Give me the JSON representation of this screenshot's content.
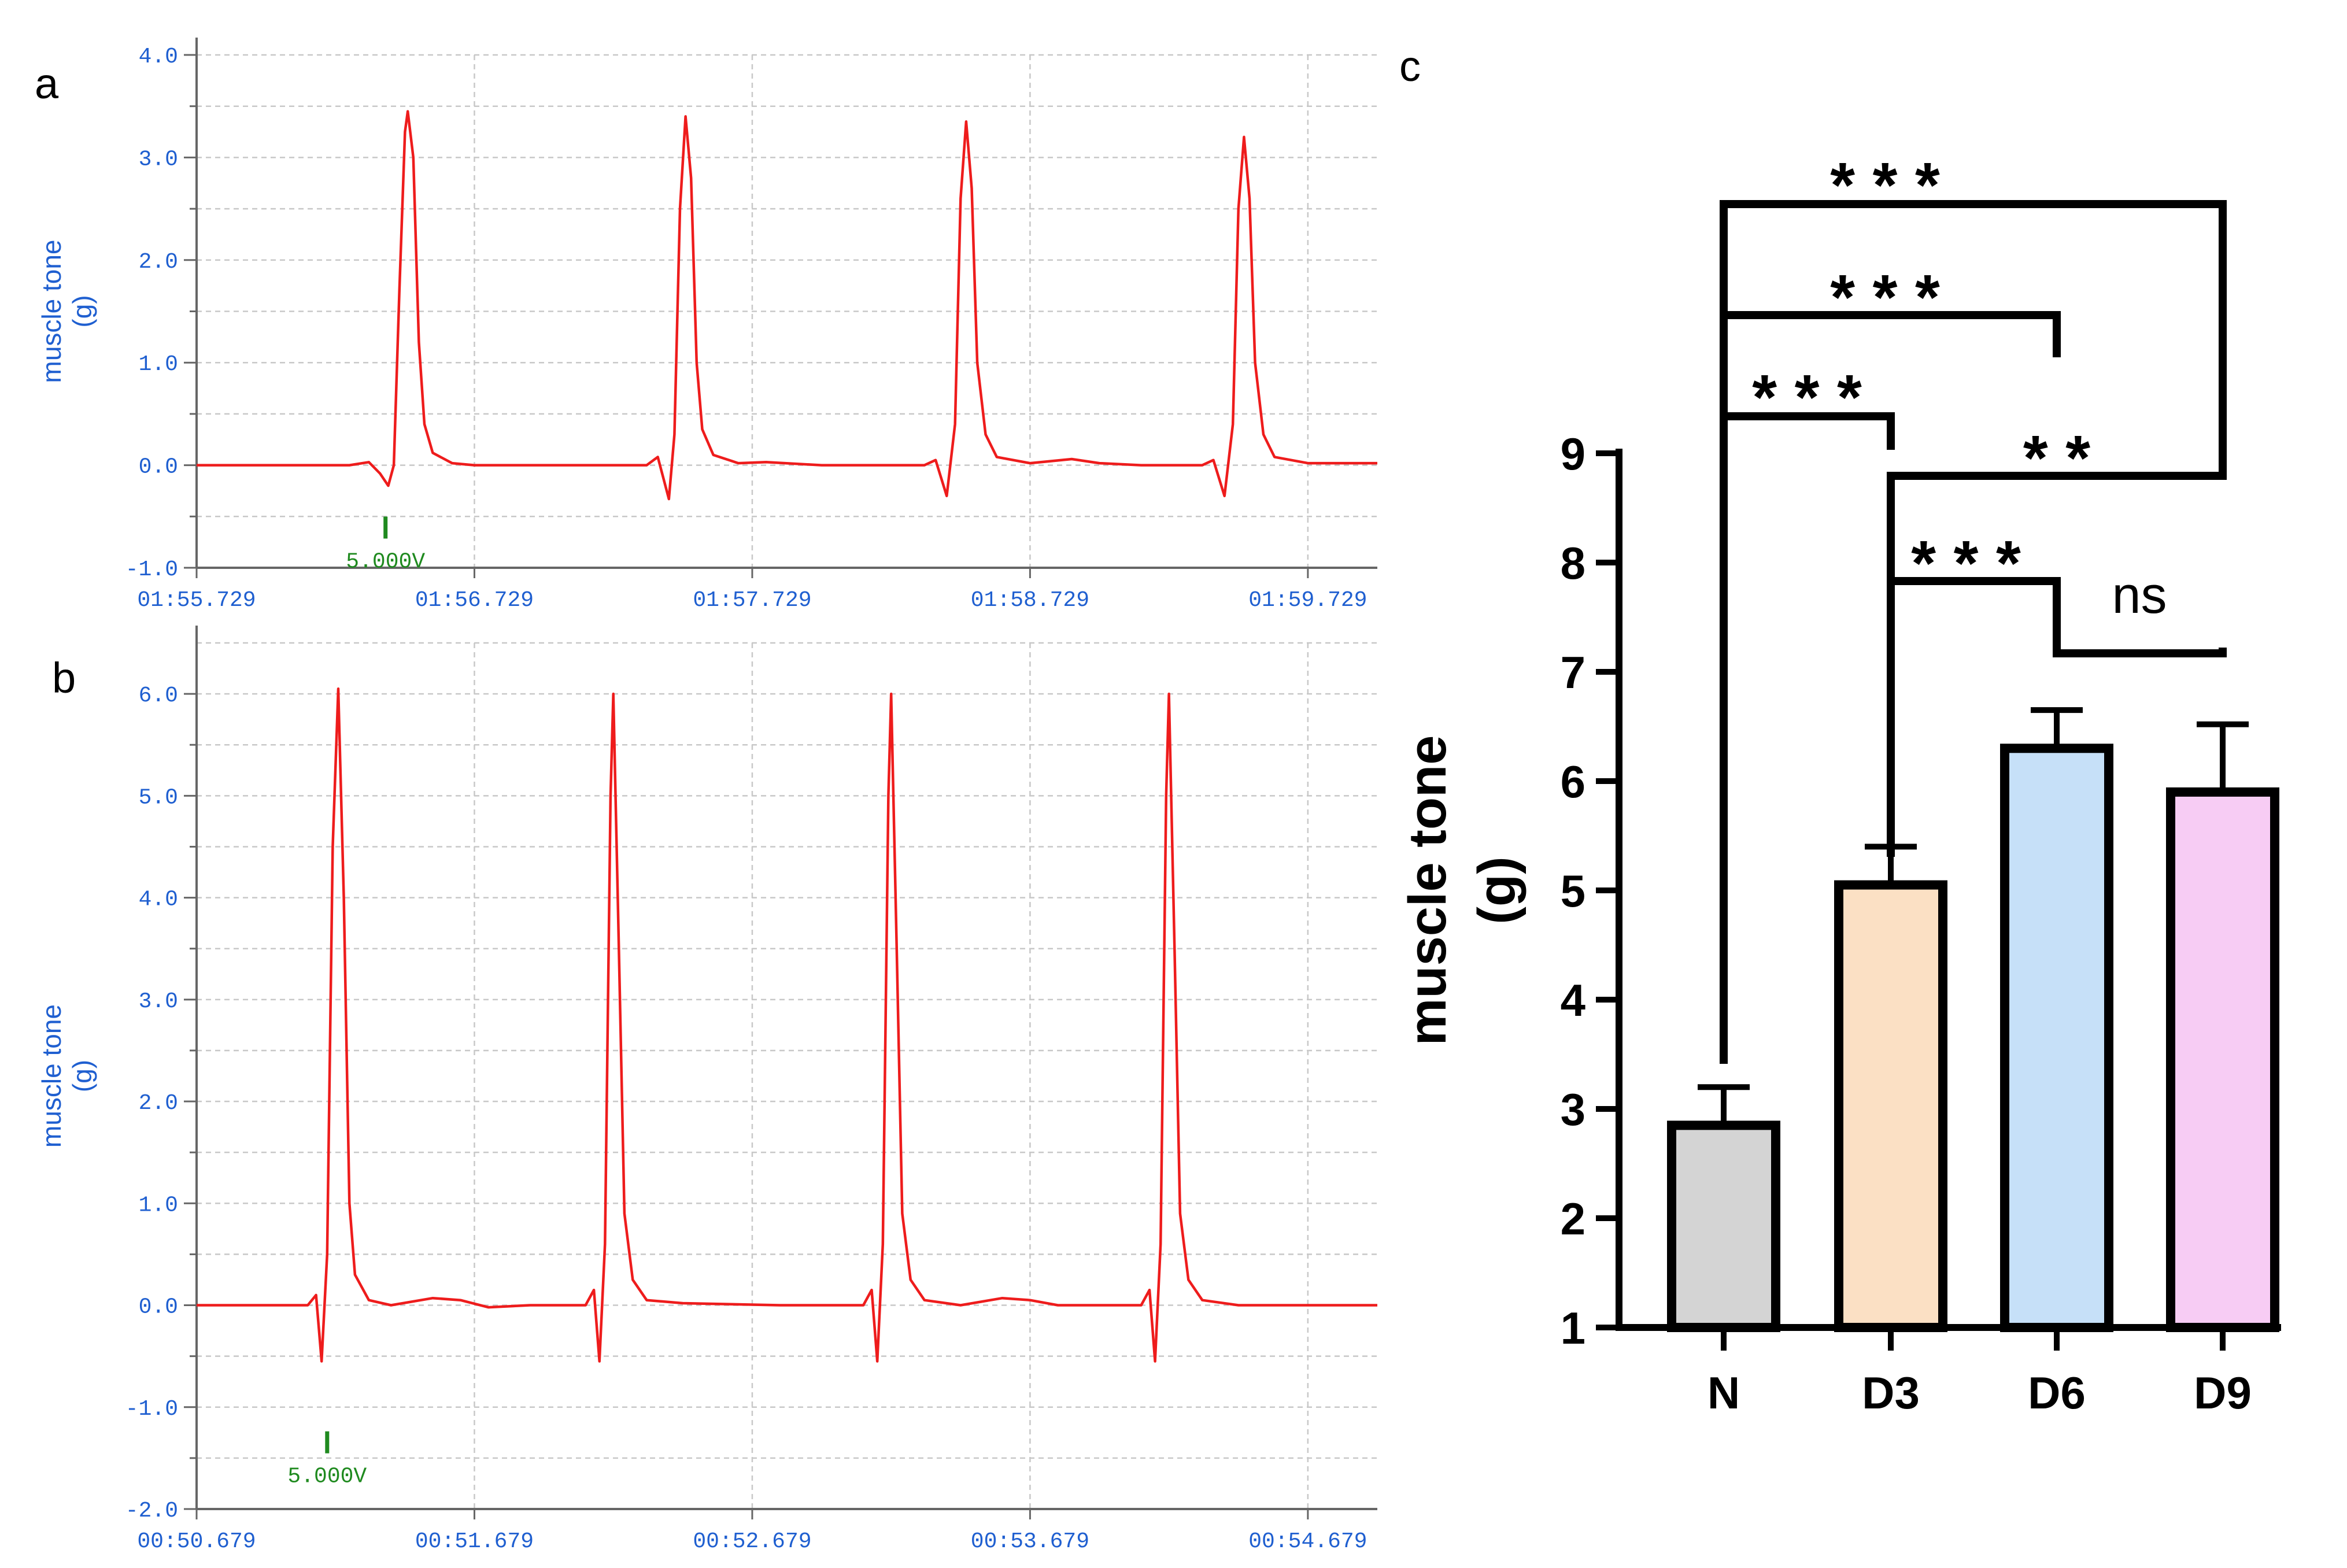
{
  "chart_data": [
    {
      "panel": "a",
      "type": "line",
      "ylabel_line1": "muscle tone",
      "ylabel_line2": "(g)",
      "xlabel": "",
      "ylim": [
        -1.0,
        4.0
      ],
      "yticks": [
        "-1.0",
        "0.0",
        "1.0",
        "2.0",
        "3.0",
        "4.0"
      ],
      "ytick_values": [
        -1,
        0,
        1,
        2,
        3,
        4
      ],
      "xlim": [
        0,
        4.25
      ],
      "xticks": [
        "01:55.729",
        "01:56.729",
        "01:57.729",
        "01:58.729",
        "01:59.729"
      ],
      "xtick_values": [
        0,
        1,
        2,
        3,
        4
      ],
      "marker_label": "5.000V",
      "marker_x": 0.68,
      "line_color": "#ee1c1c",
      "grid": true,
      "series": [
        {
          "name": "muscle tone trace",
          "points": [
            [
              0.0,
              0.0
            ],
            [
              0.55,
              0.0
            ],
            [
              0.62,
              0.03
            ],
            [
              0.66,
              -0.08
            ],
            [
              0.69,
              -0.2
            ],
            [
              0.71,
              0.0
            ],
            [
              0.73,
              1.7
            ],
            [
              0.75,
              3.25
            ],
            [
              0.76,
              3.45
            ],
            [
              0.78,
              3.0
            ],
            [
              0.8,
              1.2
            ],
            [
              0.82,
              0.4
            ],
            [
              0.85,
              0.12
            ],
            [
              0.92,
              0.02
            ],
            [
              1.0,
              0.0
            ],
            [
              1.62,
              0.0
            ],
            [
              1.66,
              0.08
            ],
            [
              1.7,
              -0.33
            ],
            [
              1.72,
              0.3
            ],
            [
              1.74,
              2.5
            ],
            [
              1.76,
              3.4
            ],
            [
              1.78,
              2.8
            ],
            [
              1.8,
              1.0
            ],
            [
              1.82,
              0.35
            ],
            [
              1.86,
              0.1
            ],
            [
              1.95,
              0.02
            ],
            [
              2.05,
              0.03
            ],
            [
              2.25,
              0.0
            ],
            [
              2.62,
              0.0
            ],
            [
              2.66,
              0.05
            ],
            [
              2.7,
              -0.3
            ],
            [
              2.73,
              0.4
            ],
            [
              2.75,
              2.6
            ],
            [
              2.77,
              3.35
            ],
            [
              2.79,
              2.7
            ],
            [
              2.81,
              1.0
            ],
            [
              2.84,
              0.3
            ],
            [
              2.88,
              0.08
            ],
            [
              3.0,
              0.02
            ],
            [
              3.15,
              0.06
            ],
            [
              3.25,
              0.02
            ],
            [
              3.4,
              0.0
            ],
            [
              3.62,
              0.0
            ],
            [
              3.66,
              0.05
            ],
            [
              3.7,
              -0.3
            ],
            [
              3.73,
              0.4
            ],
            [
              3.75,
              2.5
            ],
            [
              3.77,
              3.2
            ],
            [
              3.79,
              2.6
            ],
            [
              3.81,
              1.0
            ],
            [
              3.84,
              0.3
            ],
            [
              3.88,
              0.08
            ],
            [
              4.0,
              0.02
            ],
            [
              4.25,
              0.02
            ]
          ]
        }
      ]
    },
    {
      "panel": "b",
      "type": "line",
      "ylabel_line1": "muscle tone",
      "ylabel_line2": "(g)",
      "xlabel": "",
      "ylim": [
        -2.0,
        6.5
      ],
      "yticks": [
        "-2.0",
        "-1.0",
        "0.0",
        "1.0",
        "2.0",
        "3.0",
        "4.0",
        "5.0",
        "6.0"
      ],
      "ytick_values": [
        -2,
        -1,
        0,
        1,
        2,
        3,
        4,
        5,
        6
      ],
      "xlim": [
        0,
        4.25
      ],
      "xticks": [
        "00:50.679",
        "00:51.679",
        "00:52.679",
        "00:53.679",
        "00:54.679"
      ],
      "xtick_values": [
        0,
        1,
        2,
        3,
        4
      ],
      "marker_label": "5.000V",
      "marker_x": 0.47,
      "line_color": "#ee1c1c",
      "grid": true,
      "series": [
        {
          "name": "muscle tone trace",
          "points": [
            [
              0.0,
              0.0
            ],
            [
              0.4,
              0.0
            ],
            [
              0.43,
              0.1
            ],
            [
              0.45,
              -0.55
            ],
            [
              0.47,
              0.5
            ],
            [
              0.49,
              4.5
            ],
            [
              0.51,
              6.05
            ],
            [
              0.53,
              4.0
            ],
            [
              0.55,
              1.0
            ],
            [
              0.57,
              0.3
            ],
            [
              0.62,
              0.05
            ],
            [
              0.7,
              0.0
            ],
            [
              0.85,
              0.07
            ],
            [
              0.95,
              0.05
            ],
            [
              1.05,
              -0.02
            ],
            [
              1.2,
              0.0
            ],
            [
              1.4,
              0.0
            ],
            [
              1.43,
              0.15
            ],
            [
              1.45,
              -0.55
            ],
            [
              1.47,
              0.6
            ],
            [
              1.49,
              5.0
            ],
            [
              1.5,
              6.0
            ],
            [
              1.52,
              3.5
            ],
            [
              1.54,
              0.9
            ],
            [
              1.57,
              0.25
            ],
            [
              1.62,
              0.05
            ],
            [
              1.75,
              0.02
            ],
            [
              2.1,
              0.0
            ],
            [
              2.4,
              0.0
            ],
            [
              2.43,
              0.15
            ],
            [
              2.45,
              -0.55
            ],
            [
              2.47,
              0.6
            ],
            [
              2.49,
              5.0
            ],
            [
              2.5,
              6.0
            ],
            [
              2.52,
              3.5
            ],
            [
              2.54,
              0.9
            ],
            [
              2.57,
              0.25
            ],
            [
              2.62,
              0.05
            ],
            [
              2.75,
              0.0
            ],
            [
              2.9,
              0.07
            ],
            [
              3.0,
              0.05
            ],
            [
              3.1,
              0.0
            ],
            [
              3.4,
              0.0
            ],
            [
              3.43,
              0.15
            ],
            [
              3.45,
              -0.55
            ],
            [
              3.47,
              0.6
            ],
            [
              3.49,
              5.0
            ],
            [
              3.5,
              6.0
            ],
            [
              3.52,
              3.5
            ],
            [
              3.54,
              0.9
            ],
            [
              3.57,
              0.25
            ],
            [
              3.62,
              0.05
            ],
            [
              3.75,
              0.0
            ],
            [
              4.25,
              0.0
            ]
          ]
        }
      ]
    },
    {
      "panel": "c",
      "type": "bar",
      "ylabel_line1": "muscle tone",
      "ylabel_line2": "(g)",
      "xlabel": "",
      "ylim": [
        1,
        9
      ],
      "yticks": [
        "1",
        "2",
        "3",
        "4",
        "5",
        "6",
        "7",
        "8",
        "9"
      ],
      "ytick_values": [
        1,
        2,
        3,
        4,
        5,
        6,
        7,
        8,
        9
      ],
      "categories": [
        "N",
        "D3",
        "D6",
        "D9"
      ],
      "values": [
        2.85,
        5.05,
        6.3,
        5.9
      ],
      "errors": [
        0.35,
        0.35,
        0.35,
        0.62
      ],
      "colors": [
        "#d4d4d4",
        "#fbe0c4",
        "#c6e0f8",
        "#f7ccf4"
      ],
      "significance": [
        {
          "from": 0,
          "to": 3,
          "label": "* * *",
          "y": 8.4
        },
        {
          "from": 0,
          "to": 2,
          "label": "* * *",
          "y": 9.4
        },
        {
          "from": 0,
          "to": 1,
          "label": "* * *",
          "y": 8.0
        },
        {
          "from": 1,
          "to": 3,
          "label": "* *",
          "y": 7.8
        },
        {
          "from": 1,
          "to": 2,
          "label": "* * *",
          "y": 7.1
        },
        {
          "from": 2,
          "to": 3,
          "label": "ns",
          "y": 6.3
        }
      ]
    }
  ]
}
